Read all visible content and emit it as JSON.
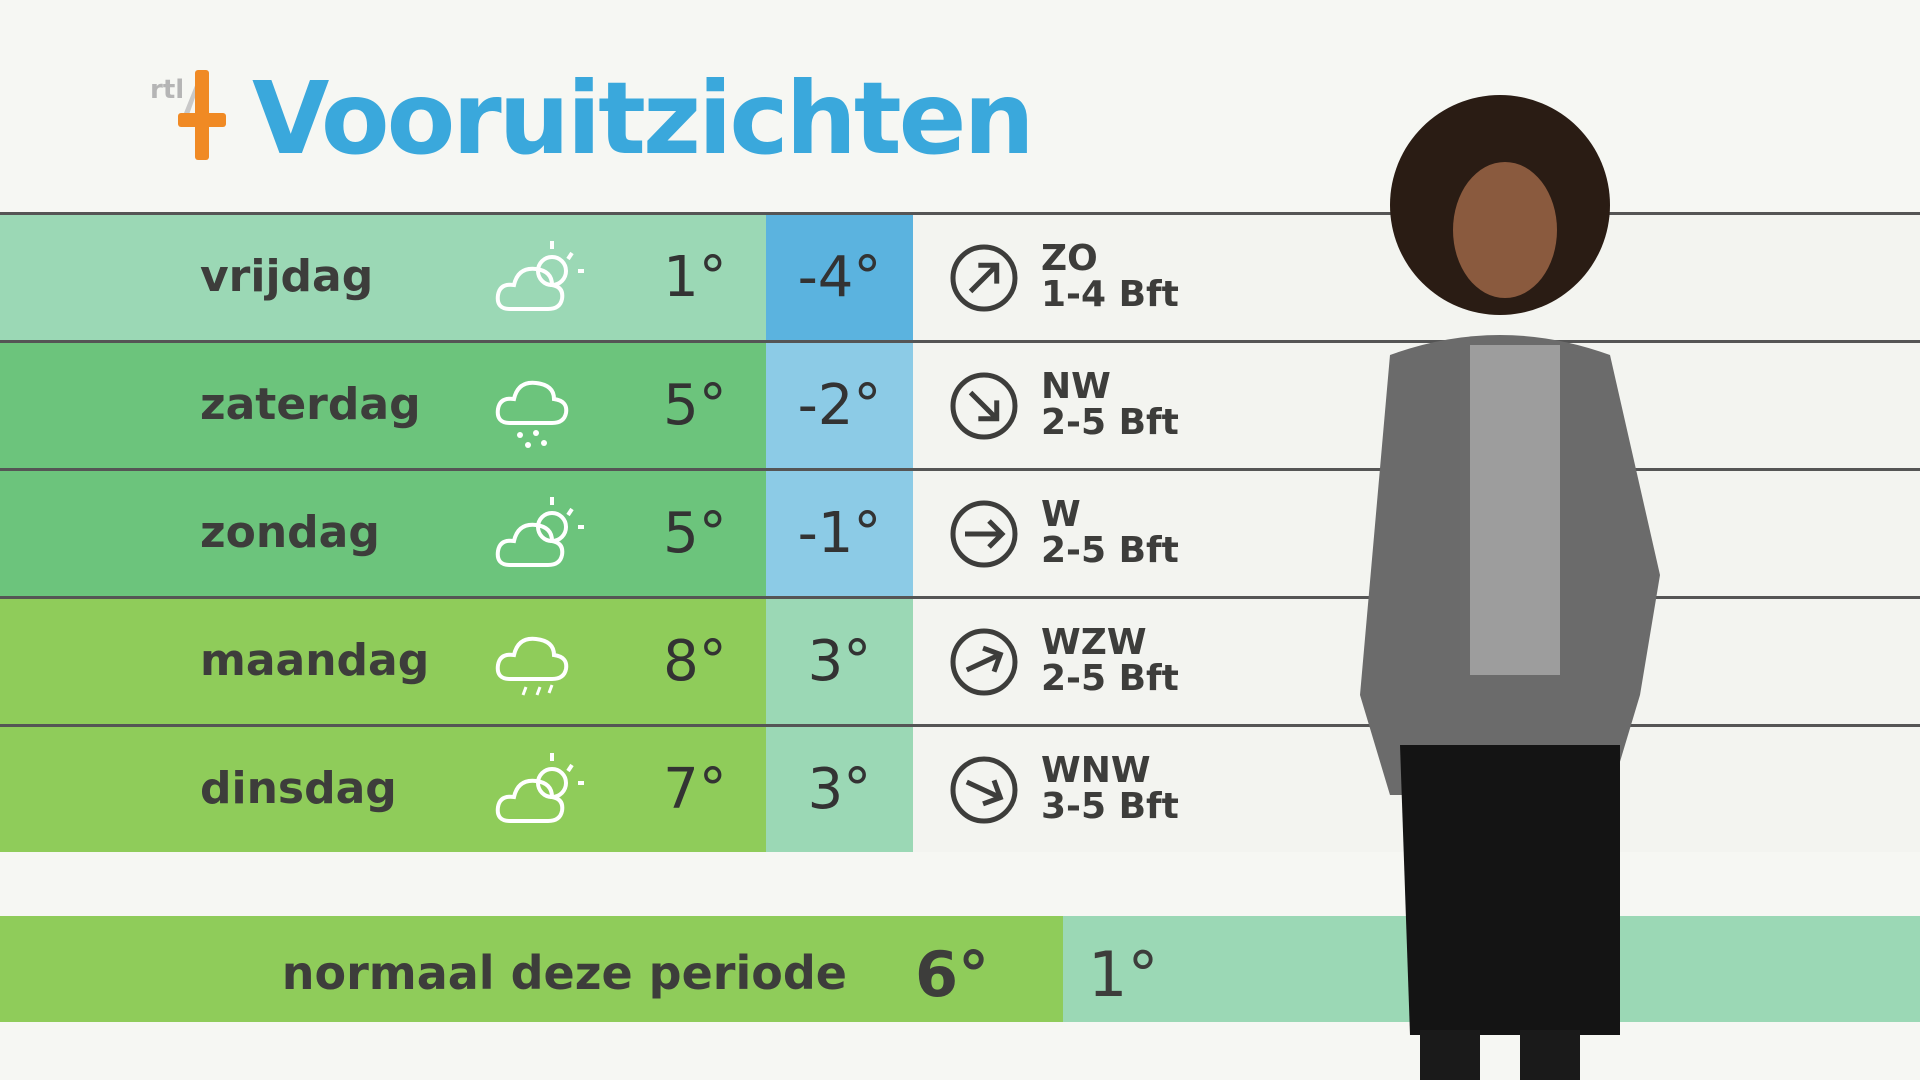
{
  "header": {
    "logo_text": "rtl4",
    "title": "Vooruitzichten"
  },
  "colors": {
    "title": "#3aa8dc",
    "logo": "#f08a24"
  },
  "rows": [
    {
      "day": "vrijdag",
      "icon": "partly-cloudy-icon",
      "max": "1°",
      "min": "-4°",
      "wind_dir": "ZO",
      "wind_force": "1-4 Bft",
      "arrow_rotation": -45,
      "day_color": "#9bd8b5",
      "min_color": "#5bb3df"
    },
    {
      "day": "zaterdag",
      "icon": "snow-cloud-icon",
      "max": "5°",
      "min": "-2°",
      "wind_dir": "NW",
      "wind_force": "2-5 Bft",
      "arrow_rotation": 45,
      "day_color": "#6cc47c",
      "min_color": "#8ccbe6"
    },
    {
      "day": "zondag",
      "icon": "partly-cloudy-icon",
      "max": "5°",
      "min": "-1°",
      "wind_dir": "W",
      "wind_force": "2-5 Bft",
      "arrow_rotation": 0,
      "day_color": "#6cc47c",
      "min_color": "#8ccbe6"
    },
    {
      "day": "maandag",
      "icon": "rain-cloud-icon",
      "max": "8°",
      "min": "3°",
      "wind_dir": "WZW",
      "wind_force": "2-5 Bft",
      "arrow_rotation": -25,
      "day_color": "#8fcc5a",
      "min_color": "#9bd8b5"
    },
    {
      "day": "dinsdag",
      "icon": "partly-cloudy-icon",
      "max": "7°",
      "min": "3°",
      "wind_dir": "WNW",
      "wind_force": "3-5 Bft",
      "arrow_rotation": 25,
      "day_color": "#8fcc5a",
      "min_color": "#9bd8b5"
    }
  ],
  "normal": {
    "label": "normaal deze periode",
    "max": "6°",
    "min": "1°"
  }
}
